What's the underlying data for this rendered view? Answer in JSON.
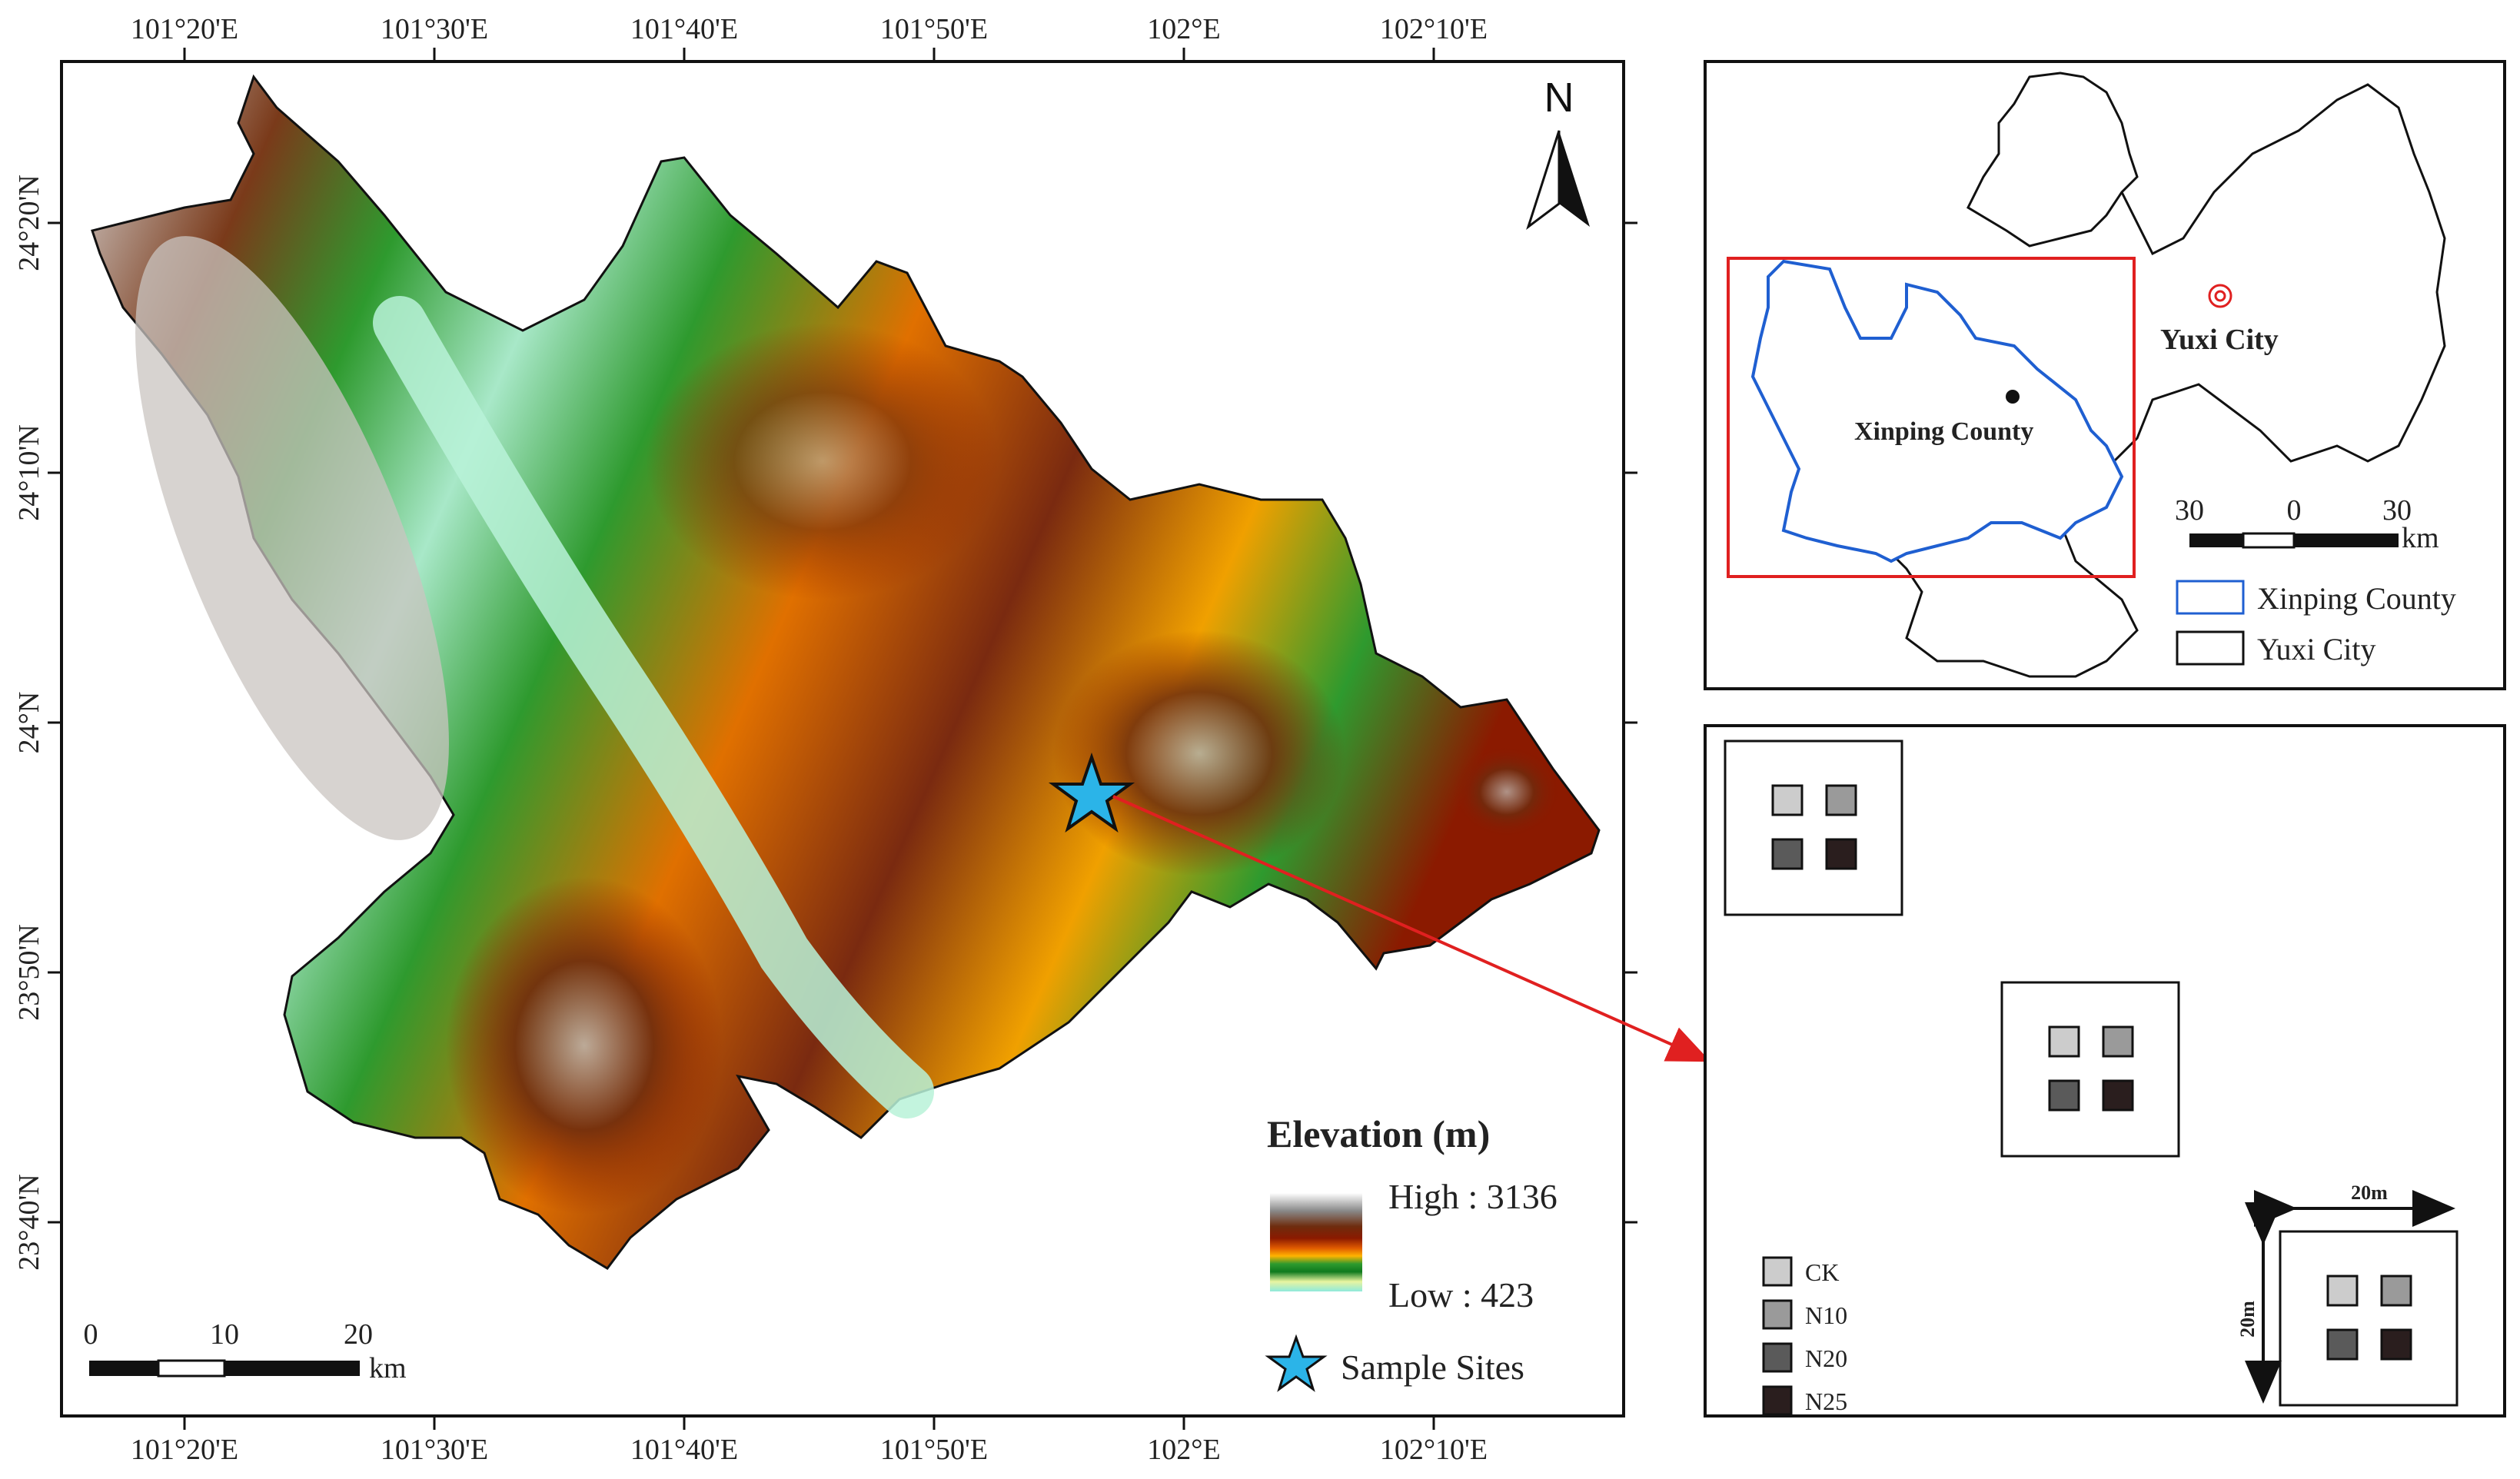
{
  "main_map": {
    "lon_ticks": [
      "101°20'E",
      "101°30'E",
      "101°40'E",
      "101°50'E",
      "102°E",
      "102°10'E"
    ],
    "lat_ticks": [
      "24°20'N",
      "24°10'N",
      "24°N",
      "23°50'N",
      "23°40'N"
    ],
    "north_label": "N",
    "legend": {
      "title": "Elevation (m)",
      "high_label": "High : 3136",
      "low_label": "Low : 423",
      "sample_label": "Sample Sites",
      "gradient_colors": [
        "#ffffff",
        "#8a8a8a",
        "#6e2c0e",
        "#8b1a00",
        "#e05a00",
        "#ffb300",
        "#2e9a2e",
        "#0f7a1e",
        "#e8f4a0",
        "#8feadb"
      ],
      "star_color": "#2bb4e8"
    },
    "scale": {
      "ticks": [
        "0",
        "10",
        "20"
      ],
      "unit": "km"
    }
  },
  "inset_map": {
    "yuxi_label": "Yuxi City",
    "xinping_label": "Xinping County",
    "scale": {
      "ticks": [
        "30",
        "0",
        "30"
      ],
      "unit": "km"
    },
    "legend": [
      {
        "label": "Xinping County",
        "color": "#1f5fd1"
      },
      {
        "label": "Yuxi City",
        "color": "#111111"
      }
    ],
    "highlight_color": "#e02020"
  },
  "plot_layout": {
    "treatments": [
      {
        "label": "CK",
        "color": "#cccccc"
      },
      {
        "label": "N10",
        "color": "#9a9a9a"
      },
      {
        "label": "N20",
        "color": "#5a5a5a"
      },
      {
        "label": "N25",
        "color": "#2a1e1e"
      }
    ],
    "width_label": "20m",
    "height_label": "20m"
  }
}
